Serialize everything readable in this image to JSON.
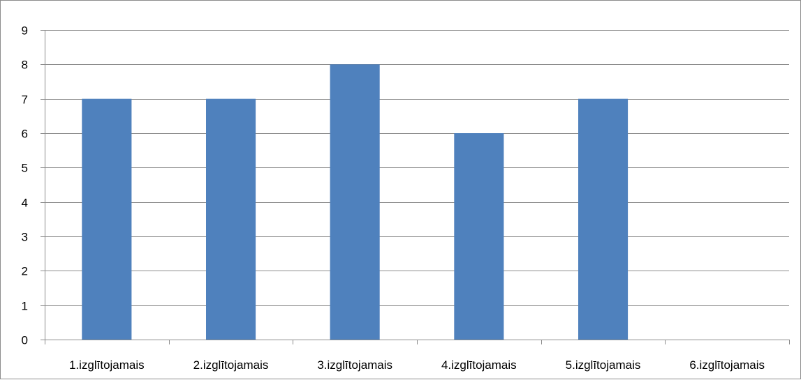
{
  "chart_data": {
    "type": "bar",
    "title": "",
    "xlabel": "",
    "ylabel": "",
    "categories": [
      "1.izglītojamais",
      "2.izglītojamais",
      "3.izglītojamais",
      "4.izglītojamais",
      "5.izglītojamais",
      "6.izglītojamais"
    ],
    "values": [
      7,
      7,
      8,
      6,
      7,
      0
    ],
    "ylim": [
      0,
      9
    ],
    "yticks": [
      "0",
      "1",
      "2",
      "3",
      "4",
      "5",
      "6",
      "7",
      "8",
      "9"
    ],
    "grid": true,
    "legend": "none",
    "colors": {
      "bar": "#4f81bd",
      "gridline": "#8c8c8c",
      "axis": "#8c8c8c",
      "border": "#8c8c8c"
    }
  }
}
